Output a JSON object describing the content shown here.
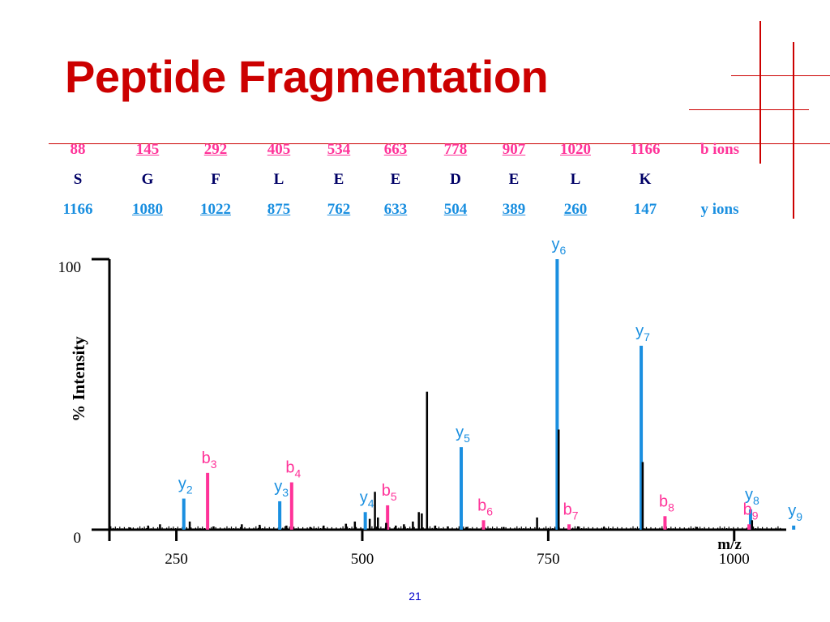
{
  "slide": {
    "title": "Peptide Fragmentation",
    "page_number": "21"
  },
  "ion_table": {
    "b_ions": [
      "88",
      "145",
      "292",
      "405",
      "534",
      "663",
      "778",
      "907",
      "1020",
      "1166"
    ],
    "b_underlined": [
      false,
      true,
      true,
      true,
      true,
      true,
      true,
      true,
      true,
      false
    ],
    "b_label": "b ions",
    "residues": [
      "S",
      "G",
      "F",
      "L",
      "E",
      "E",
      "D",
      "E",
      "L",
      "K"
    ],
    "y_ions": [
      "1166",
      "1080",
      "1022",
      "875",
      "762",
      "633",
      "504",
      "389",
      "260",
      "147"
    ],
    "y_underlined": [
      false,
      true,
      true,
      true,
      true,
      true,
      true,
      true,
      true,
      false
    ],
    "y_label": "y ions"
  },
  "colors": {
    "title": "#cc0000",
    "b_ion": "#ff3399",
    "y_ion": "#1a8fe0",
    "residue": "#000066",
    "peak_other": "#000000"
  },
  "chart_data": {
    "type": "bar",
    "title": "",
    "xlabel": "m/z",
    "ylabel": "% Intensity",
    "xlim": [
      160,
      1070
    ],
    "ylim": [
      0,
      100
    ],
    "x_ticks": [
      250,
      500,
      750,
      1000
    ],
    "y_ticks": [
      0,
      100
    ],
    "series": [
      {
        "name": "y ions",
        "color": "#1a8fe0",
        "points": [
          {
            "label": "y",
            "sub": "2",
            "mz": 260,
            "intensity": 11.5
          },
          {
            "label": "y",
            "sub": "3",
            "mz": 389,
            "intensity": 10.5
          },
          {
            "label": "y",
            "sub": "4",
            "mz": 504,
            "intensity": 6.5
          },
          {
            "label": "y",
            "sub": "5",
            "mz": 633,
            "intensity": 30.5
          },
          {
            "label": "y",
            "sub": "6",
            "mz": 762,
            "intensity": 100
          },
          {
            "label": "y",
            "sub": "7",
            "mz": 875,
            "intensity": 68
          },
          {
            "label": "y",
            "sub": "8",
            "mz": 1022,
            "intensity": 7.5
          },
          {
            "label": "y",
            "sub": "9",
            "mz": 1080,
            "intensity": 1.5
          }
        ]
      },
      {
        "name": "b ions",
        "color": "#ff3399",
        "points": [
          {
            "label": "b",
            "sub": "3",
            "mz": 292,
            "intensity": 21
          },
          {
            "label": "b",
            "sub": "4",
            "mz": 405,
            "intensity": 17.5
          },
          {
            "label": "b",
            "sub": "5",
            "mz": 534,
            "intensity": 9
          },
          {
            "label": "b",
            "sub": "6",
            "mz": 663,
            "intensity": 3.5
          },
          {
            "label": "b",
            "sub": "7",
            "mz": 778,
            "intensity": 2
          },
          {
            "label": "b",
            "sub": "8",
            "mz": 907,
            "intensity": 5
          },
          {
            "label": "b",
            "sub": "9",
            "mz": 1020,
            "intensity": 2
          }
        ]
      },
      {
        "name": "other peaks",
        "color": "#000000",
        "points": [
          {
            "mz": 188,
            "intensity": 0.8
          },
          {
            "mz": 212,
            "intensity": 1.5
          },
          {
            "mz": 228,
            "intensity": 2
          },
          {
            "mz": 268,
            "intensity": 3
          },
          {
            "mz": 300,
            "intensity": 1.2
          },
          {
            "mz": 338,
            "intensity": 2
          },
          {
            "mz": 362,
            "intensity": 1.8
          },
          {
            "mz": 398,
            "intensity": 1.5
          },
          {
            "mz": 430,
            "intensity": 1
          },
          {
            "mz": 448,
            "intensity": 1.5
          },
          {
            "mz": 478,
            "intensity": 2.2
          },
          {
            "mz": 490,
            "intensity": 3
          },
          {
            "mz": 510,
            "intensity": 4
          },
          {
            "mz": 517,
            "intensity": 14
          },
          {
            "mz": 521,
            "intensity": 4.5
          },
          {
            "mz": 532,
            "intensity": 2.5
          },
          {
            "mz": 545,
            "intensity": 1.5
          },
          {
            "mz": 556,
            "intensity": 2
          },
          {
            "mz": 568,
            "intensity": 3
          },
          {
            "mz": 576,
            "intensity": 6.5
          },
          {
            "mz": 580,
            "intensity": 6
          },
          {
            "mz": 587,
            "intensity": 51
          },
          {
            "mz": 598,
            "intensity": 1.5
          },
          {
            "mz": 615,
            "intensity": 1.2
          },
          {
            "mz": 640,
            "intensity": 1
          },
          {
            "mz": 690,
            "intensity": 1
          },
          {
            "mz": 735,
            "intensity": 4.5
          },
          {
            "mz": 764,
            "intensity": 37
          },
          {
            "mz": 790,
            "intensity": 1.2
          },
          {
            "mz": 825,
            "intensity": 1
          },
          {
            "mz": 877,
            "intensity": 25
          },
          {
            "mz": 950,
            "intensity": 1
          },
          {
            "mz": 1024,
            "intensity": 3.5
          }
        ]
      }
    ]
  }
}
